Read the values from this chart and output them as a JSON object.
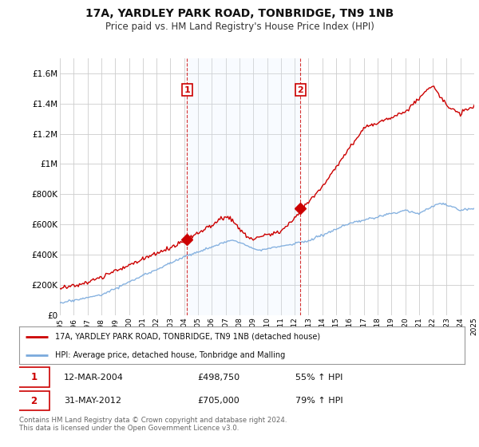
{
  "title": "17A, YARDLEY PARK ROAD, TONBRIDGE, TN9 1NB",
  "subtitle": "Price paid vs. HM Land Registry's House Price Index (HPI)",
  "title_fontsize": 10,
  "subtitle_fontsize": 8.5,
  "background_color": "#ffffff",
  "plot_bg_color": "#ffffff",
  "grid_color": "#cccccc",
  "red_line_color": "#cc0000",
  "blue_line_color": "#7aaadd",
  "shade_blue": "#ddeeff",
  "ylim": [
    0,
    1700000
  ],
  "yticks": [
    0,
    200000,
    400000,
    600000,
    800000,
    1000000,
    1200000,
    1400000,
    1600000
  ],
  "ytick_labels": [
    "£0",
    "£200K",
    "£400K",
    "£600K",
    "£800K",
    "£1M",
    "£1.2M",
    "£1.4M",
    "£1.6M"
  ],
  "sale1_year": 2004.2,
  "sale1_price": 498750,
  "sale2_year": 2012.42,
  "sale2_price": 705000,
  "legend_entry1": "17A, YARDLEY PARK ROAD, TONBRIDGE, TN9 1NB (detached house)",
  "legend_entry2": "HPI: Average price, detached house, Tonbridge and Malling",
  "table_row1": [
    "1",
    "12-MAR-2004",
    "£498,750",
    "55% ↑ HPI"
  ],
  "table_row2": [
    "2",
    "31-MAY-2012",
    "£705,000",
    "79% ↑ HPI"
  ],
  "footnote": "Contains HM Land Registry data © Crown copyright and database right 2024.\nThis data is licensed under the Open Government Licence v3.0.",
  "xstart": 1995,
  "xend": 2025
}
